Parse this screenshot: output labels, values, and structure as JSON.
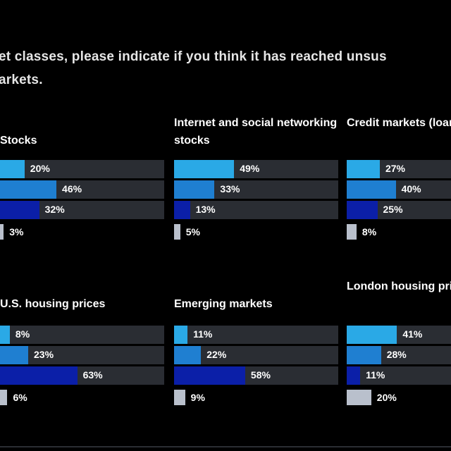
{
  "question": {
    "line1": "et classes, please indicate if you think it has reached unsus",
    "line2": "arkets."
  },
  "colors": {
    "background": "#000000",
    "track": "#2a2d33",
    "series": [
      "#2aa9e6",
      "#1f7fd1",
      "#0b1fa8",
      "#b9c0cc"
    ]
  },
  "chart_data": [
    {
      "type": "bar",
      "title": "Stocks",
      "xlim": [
        0,
        100
      ],
      "values": [
        20,
        46,
        32,
        3
      ],
      "labels": [
        "20%",
        "46%",
        "32%",
        "3%"
      ]
    },
    {
      "type": "bar",
      "title": "Internet and social networking stocks",
      "xlim": [
        0,
        100
      ],
      "values": [
        49,
        33,
        13,
        5
      ],
      "labels": [
        "49%",
        "33%",
        "13%",
        "5%"
      ]
    },
    {
      "type": "bar",
      "title": "Credit markets (loans, junk bon",
      "xlim": [
        0,
        100
      ],
      "values": [
        27,
        40,
        25,
        8
      ],
      "labels": [
        "27%",
        "40%",
        "25%",
        "8%"
      ]
    },
    {
      "type": "bar",
      "title": "U.S. housing prices",
      "xlim": [
        0,
        100
      ],
      "values": [
        8,
        23,
        63,
        6
      ],
      "labels": [
        "8%",
        "23%",
        "63%",
        "6%"
      ]
    },
    {
      "type": "bar",
      "title": "Emerging markets",
      "xlim": [
        0,
        100
      ],
      "values": [
        11,
        22,
        58,
        9
      ],
      "labels": [
        "11%",
        "22%",
        "58%",
        "9%"
      ]
    },
    {
      "type": "bar",
      "title": "London housing prices",
      "xlim": [
        0,
        100
      ],
      "values": [
        41,
        28,
        11,
        20
      ],
      "labels": [
        "41%",
        "28%",
        "11%",
        "20%"
      ]
    }
  ]
}
